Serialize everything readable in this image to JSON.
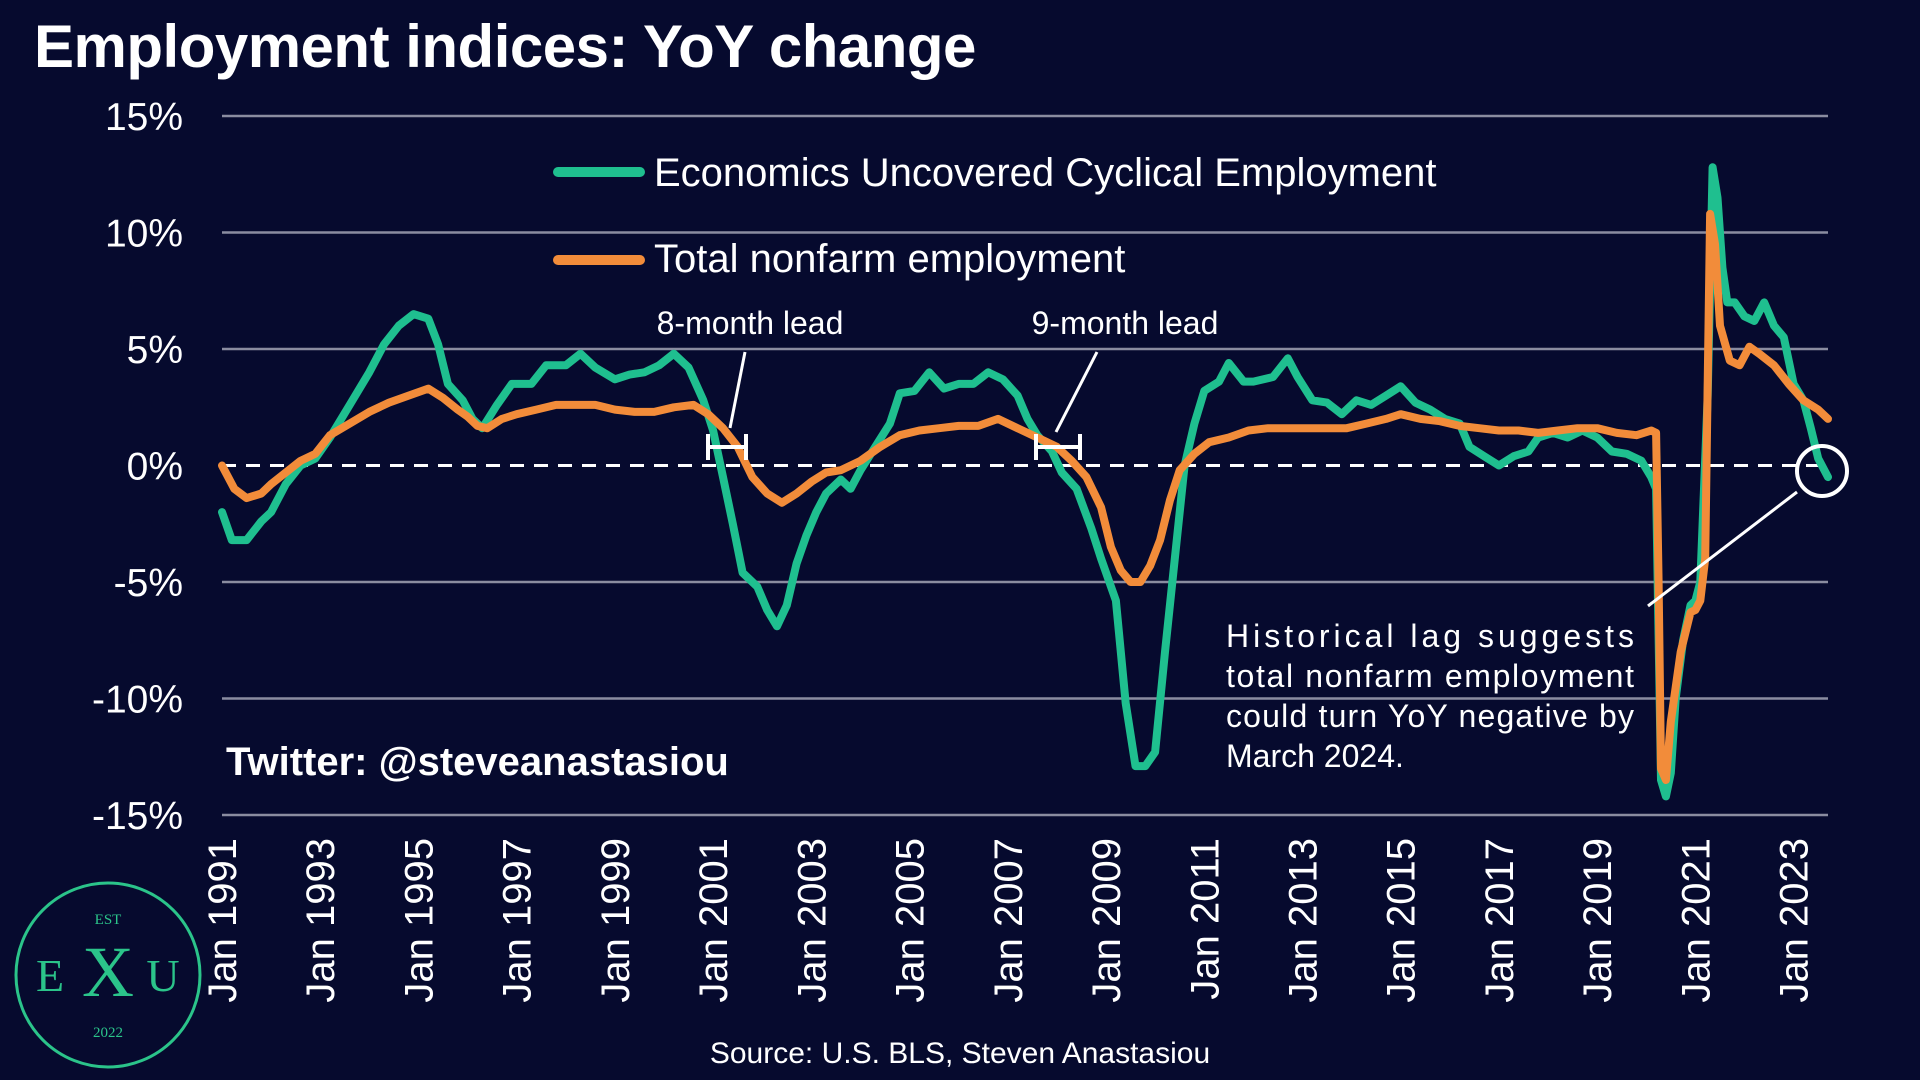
{
  "title": "Employment indices: YoY change",
  "handle": "Twitter: @steveanastasiou",
  "source": "Source: U.S. BLS, Steven Anastasiou",
  "annotations": {
    "lead1": "8-month lead",
    "lead2": "9-month lead",
    "note_lines": [
      "Historical lag suggests",
      "total nonfarm employment",
      "could turn YoY negative by",
      "March 2024."
    ]
  },
  "logo": {
    "top": "EST",
    "left": "E",
    "middle": "X",
    "right": "U",
    "bottom": "2022"
  },
  "colors": {
    "background": "#060a2e",
    "cyclical": "#1fbf8f",
    "nonfarm": "#f28c3a",
    "grid": "#8a8ca0"
  },
  "chart_data": {
    "type": "line",
    "title": "Employment indices: YoY change",
    "ylim": [
      -15,
      15
    ],
    "yticks": [
      15,
      10,
      5,
      0,
      -5,
      -10,
      -15
    ],
    "ytick_labels": [
      "15%",
      "10%",
      "5%",
      "0%",
      "-5%",
      "-10%",
      "-15%"
    ],
    "xlim": [
      1991.0,
      2023.7
    ],
    "xticks": [
      1991,
      1993,
      1995,
      1997,
      1999,
      2001,
      2003,
      2005,
      2007,
      2009,
      2011,
      2013,
      2015,
      2017,
      2019,
      2021,
      2023
    ],
    "xtick_labels": [
      "Jan 1991",
      "Jan 1993",
      "Jan 1995",
      "Jan 1997",
      "Jan 1999",
      "Jan 2001",
      "Jan 2003",
      "Jan 2005",
      "Jan 2007",
      "Jan 2009",
      "Jan 2011",
      "Jan 2013",
      "Jan 2015",
      "Jan 2017",
      "Jan 2019",
      "Jan 2021",
      "Jan 2023"
    ],
    "grid": true,
    "legend": "top-center",
    "series": [
      {
        "name": "Economics Uncovered Cyclical Employment",
        "color": "#1fbf8f",
        "points": [
          [
            1991.0,
            -2.0
          ],
          [
            1991.2,
            -3.2
          ],
          [
            1991.5,
            -3.2
          ],
          [
            1991.8,
            -2.4
          ],
          [
            1992.0,
            -2.0
          ],
          [
            1992.3,
            -0.8
          ],
          [
            1992.6,
            0.0
          ],
          [
            1992.9,
            0.3
          ],
          [
            1993.2,
            1.2
          ],
          [
            1993.6,
            2.6
          ],
          [
            1994.0,
            4.0
          ],
          [
            1994.3,
            5.2
          ],
          [
            1994.6,
            6.0
          ],
          [
            1994.9,
            6.5
          ],
          [
            1995.2,
            6.3
          ],
          [
            1995.4,
            5.2
          ],
          [
            1995.6,
            3.5
          ],
          [
            1995.9,
            2.8
          ],
          [
            1996.1,
            2.0
          ],
          [
            1996.3,
            1.6
          ],
          [
            1996.6,
            2.6
          ],
          [
            1996.9,
            3.5
          ],
          [
            1997.3,
            3.5
          ],
          [
            1997.6,
            4.3
          ],
          [
            1998.0,
            4.3
          ],
          [
            1998.3,
            4.8
          ],
          [
            1998.6,
            4.2
          ],
          [
            1999.0,
            3.7
          ],
          [
            1999.3,
            3.9
          ],
          [
            1999.6,
            4.0
          ],
          [
            1999.9,
            4.3
          ],
          [
            2000.2,
            4.8
          ],
          [
            2000.5,
            4.2
          ],
          [
            2000.8,
            2.8
          ],
          [
            2001.0,
            1.5
          ],
          [
            2001.2,
            -0.5
          ],
          [
            2001.4,
            -2.5
          ],
          [
            2001.6,
            -4.6
          ],
          [
            2001.9,
            -5.2
          ],
          [
            2002.1,
            -6.2
          ],
          [
            2002.3,
            -6.9
          ],
          [
            2002.5,
            -6.0
          ],
          [
            2002.7,
            -4.2
          ],
          [
            2002.9,
            -3.0
          ],
          [
            2003.1,
            -2.0
          ],
          [
            2003.3,
            -1.2
          ],
          [
            2003.6,
            -0.6
          ],
          [
            2003.8,
            -1.0
          ],
          [
            2004.0,
            -0.2
          ],
          [
            2004.3,
            0.8
          ],
          [
            2004.6,
            1.8
          ],
          [
            2004.8,
            3.1
          ],
          [
            2005.1,
            3.2
          ],
          [
            2005.4,
            4.0
          ],
          [
            2005.7,
            3.3
          ],
          [
            2006.0,
            3.5
          ],
          [
            2006.3,
            3.5
          ],
          [
            2006.6,
            4.0
          ],
          [
            2006.9,
            3.7
          ],
          [
            2007.2,
            3.0
          ],
          [
            2007.4,
            2.0
          ],
          [
            2007.6,
            1.3
          ],
          [
            2007.9,
            0.6
          ],
          [
            2008.1,
            -0.3
          ],
          [
            2008.4,
            -1.0
          ],
          [
            2008.7,
            -2.7
          ],
          [
            2008.9,
            -4.0
          ],
          [
            2009.2,
            -5.8
          ],
          [
            2009.4,
            -10.2
          ],
          [
            2009.6,
            -12.9
          ],
          [
            2009.8,
            -12.9
          ],
          [
            2010.0,
            -12.3
          ],
          [
            2010.2,
            -8.0
          ],
          [
            2010.4,
            -4.0
          ],
          [
            2010.6,
            0.0
          ],
          [
            2010.8,
            1.8
          ],
          [
            2011.0,
            3.2
          ],
          [
            2011.3,
            3.6
          ],
          [
            2011.5,
            4.4
          ],
          [
            2011.8,
            3.6
          ],
          [
            2012.0,
            3.6
          ],
          [
            2012.4,
            3.8
          ],
          [
            2012.7,
            4.6
          ],
          [
            2012.9,
            3.8
          ],
          [
            2013.2,
            2.8
          ],
          [
            2013.5,
            2.7
          ],
          [
            2013.8,
            2.2
          ],
          [
            2014.1,
            2.8
          ],
          [
            2014.4,
            2.6
          ],
          [
            2014.7,
            3.0
          ],
          [
            2015.0,
            3.4
          ],
          [
            2015.3,
            2.7
          ],
          [
            2015.6,
            2.4
          ],
          [
            2015.9,
            2.0
          ],
          [
            2016.2,
            1.8
          ],
          [
            2016.4,
            0.8
          ],
          [
            2016.7,
            0.4
          ],
          [
            2017.0,
            0.0
          ],
          [
            2017.3,
            0.4
          ],
          [
            2017.6,
            0.6
          ],
          [
            2017.8,
            1.2
          ],
          [
            2018.1,
            1.4
          ],
          [
            2018.4,
            1.2
          ],
          [
            2018.7,
            1.5
          ],
          [
            2019.0,
            1.2
          ],
          [
            2019.3,
            0.6
          ],
          [
            2019.6,
            0.5
          ],
          [
            2019.9,
            0.2
          ],
          [
            2020.1,
            -0.5
          ],
          [
            2020.2,
            -1.0
          ],
          [
            2020.3,
            -13.5
          ],
          [
            2020.4,
            -14.2
          ],
          [
            2020.5,
            -13.2
          ],
          [
            2020.6,
            -10.0
          ],
          [
            2020.75,
            -7.5
          ],
          [
            2020.9,
            -6.0
          ],
          [
            2021.0,
            -5.8
          ],
          [
            2021.1,
            -5.0
          ],
          [
            2021.25,
            3.0
          ],
          [
            2021.35,
            12.8
          ],
          [
            2021.45,
            11.5
          ],
          [
            2021.55,
            8.5
          ],
          [
            2021.65,
            7.0
          ],
          [
            2021.8,
            7.0
          ],
          [
            2022.0,
            6.4
          ],
          [
            2022.2,
            6.2
          ],
          [
            2022.4,
            7.0
          ],
          [
            2022.6,
            6.0
          ],
          [
            2022.8,
            5.5
          ],
          [
            2023.0,
            3.5
          ],
          [
            2023.2,
            2.8
          ],
          [
            2023.35,
            1.6
          ],
          [
            2023.5,
            0.3
          ],
          [
            2023.7,
            -0.5
          ]
        ]
      },
      {
        "name": "Total nonfarm employment",
        "color": "#f28c3a",
        "points": [
          [
            1991.0,
            0.0
          ],
          [
            1991.25,
            -1.0
          ],
          [
            1991.5,
            -1.4
          ],
          [
            1991.8,
            -1.2
          ],
          [
            1992.0,
            -0.8
          ],
          [
            1992.3,
            -0.3
          ],
          [
            1992.6,
            0.2
          ],
          [
            1992.9,
            0.5
          ],
          [
            1993.2,
            1.3
          ],
          [
            1993.6,
            1.8
          ],
          [
            1994.0,
            2.3
          ],
          [
            1994.4,
            2.7
          ],
          [
            1994.8,
            3.0
          ],
          [
            1995.2,
            3.3
          ],
          [
            1995.5,
            2.9
          ],
          [
            1995.8,
            2.4
          ],
          [
            1996.0,
            2.1
          ],
          [
            1996.2,
            1.7
          ],
          [
            1996.4,
            1.6
          ],
          [
            1996.7,
            2.0
          ],
          [
            1997.0,
            2.2
          ],
          [
            1997.4,
            2.4
          ],
          [
            1997.8,
            2.6
          ],
          [
            1998.2,
            2.6
          ],
          [
            1998.6,
            2.6
          ],
          [
            1999.0,
            2.4
          ],
          [
            1999.4,
            2.3
          ],
          [
            1999.8,
            2.3
          ],
          [
            2000.2,
            2.5
          ],
          [
            2000.6,
            2.6
          ],
          [
            2000.9,
            2.2
          ],
          [
            2001.2,
            1.6
          ],
          [
            2001.5,
            0.8
          ],
          [
            2001.8,
            -0.5
          ],
          [
            2002.1,
            -1.2
          ],
          [
            2002.4,
            -1.6
          ],
          [
            2002.7,
            -1.2
          ],
          [
            2003.0,
            -0.7
          ],
          [
            2003.3,
            -0.3
          ],
          [
            2003.6,
            -0.2
          ],
          [
            2004.0,
            0.2
          ],
          [
            2004.4,
            0.8
          ],
          [
            2004.8,
            1.3
          ],
          [
            2005.2,
            1.5
          ],
          [
            2005.6,
            1.6
          ],
          [
            2006.0,
            1.7
          ],
          [
            2006.4,
            1.7
          ],
          [
            2006.8,
            2.0
          ],
          [
            2007.2,
            1.6
          ],
          [
            2007.6,
            1.2
          ],
          [
            2008.0,
            0.8
          ],
          [
            2008.3,
            0.2
          ],
          [
            2008.6,
            -0.5
          ],
          [
            2008.9,
            -1.8
          ],
          [
            2009.1,
            -3.5
          ],
          [
            2009.3,
            -4.5
          ],
          [
            2009.5,
            -5.0
          ],
          [
            2009.7,
            -5.0
          ],
          [
            2009.9,
            -4.3
          ],
          [
            2010.1,
            -3.2
          ],
          [
            2010.3,
            -1.5
          ],
          [
            2010.5,
            -0.2
          ],
          [
            2010.8,
            0.5
          ],
          [
            2011.1,
            1.0
          ],
          [
            2011.5,
            1.2
          ],
          [
            2011.9,
            1.5
          ],
          [
            2012.3,
            1.6
          ],
          [
            2012.7,
            1.6
          ],
          [
            2013.1,
            1.6
          ],
          [
            2013.5,
            1.6
          ],
          [
            2013.9,
            1.6
          ],
          [
            2014.3,
            1.8
          ],
          [
            2014.7,
            2.0
          ],
          [
            2015.0,
            2.2
          ],
          [
            2015.4,
            2.0
          ],
          [
            2015.8,
            1.9
          ],
          [
            2016.2,
            1.7
          ],
          [
            2016.6,
            1.6
          ],
          [
            2017.0,
            1.5
          ],
          [
            2017.4,
            1.5
          ],
          [
            2017.8,
            1.4
          ],
          [
            2018.2,
            1.5
          ],
          [
            2018.6,
            1.6
          ],
          [
            2019.0,
            1.6
          ],
          [
            2019.4,
            1.4
          ],
          [
            2019.8,
            1.3
          ],
          [
            2020.1,
            1.5
          ],
          [
            2020.2,
            1.4
          ],
          [
            2020.25,
            -5.0
          ],
          [
            2020.3,
            -13.0
          ],
          [
            2020.4,
            -13.5
          ],
          [
            2020.5,
            -11.0
          ],
          [
            2020.7,
            -8.0
          ],
          [
            2020.9,
            -6.3
          ],
          [
            2021.0,
            -6.2
          ],
          [
            2021.1,
            -5.8
          ],
          [
            2021.2,
            -4.0
          ],
          [
            2021.3,
            10.8
          ],
          [
            2021.4,
            9.5
          ],
          [
            2021.5,
            6.0
          ],
          [
            2021.7,
            4.5
          ],
          [
            2021.9,
            4.3
          ],
          [
            2022.1,
            5.1
          ],
          [
            2022.3,
            4.8
          ],
          [
            2022.6,
            4.3
          ],
          [
            2022.9,
            3.5
          ],
          [
            2023.2,
            2.8
          ],
          [
            2023.5,
            2.4
          ],
          [
            2023.7,
            2.0
          ]
        ]
      }
    ]
  }
}
